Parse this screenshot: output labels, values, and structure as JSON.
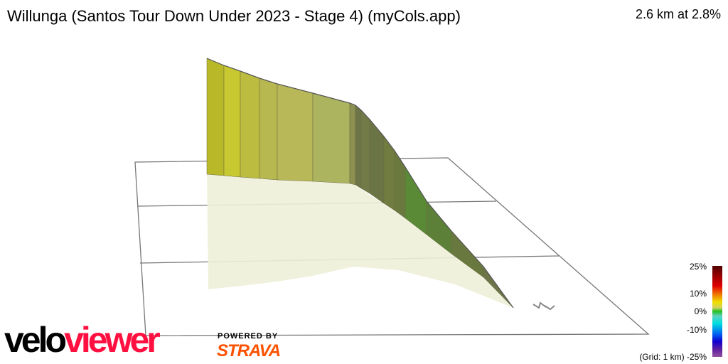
{
  "header": {
    "title": "Willunga (Santos Tour Down Under 2023 - Stage 4) (myCols.app)",
    "summary": "2.6 km at 2.8%"
  },
  "legend": {
    "labels": [
      "25%",
      "10%",
      "0%",
      "-10%",
      "(Grid: 1 km) -25%"
    ]
  },
  "branding": {
    "logo_velo": "velo",
    "logo_viewer": "viewer",
    "powered_by": "POWERED BY",
    "strava": "STRAVA",
    "colors": {
      "velo": "#000000",
      "viewer": "#ff1040",
      "strava": "#fc5200"
    }
  },
  "profile": {
    "segment_colors": [
      "#b8b828",
      "#c8c830",
      "#bcbc40",
      "#b8b850",
      "#b8b858",
      "#acb460",
      "#8c9050",
      "#6c7448",
      "#727a48",
      "#6a7444",
      "#707c40",
      "#6a7a3e",
      "#5a8a36",
      "#5c8038",
      "#68783e",
      "#6c7448"
    ]
  }
}
